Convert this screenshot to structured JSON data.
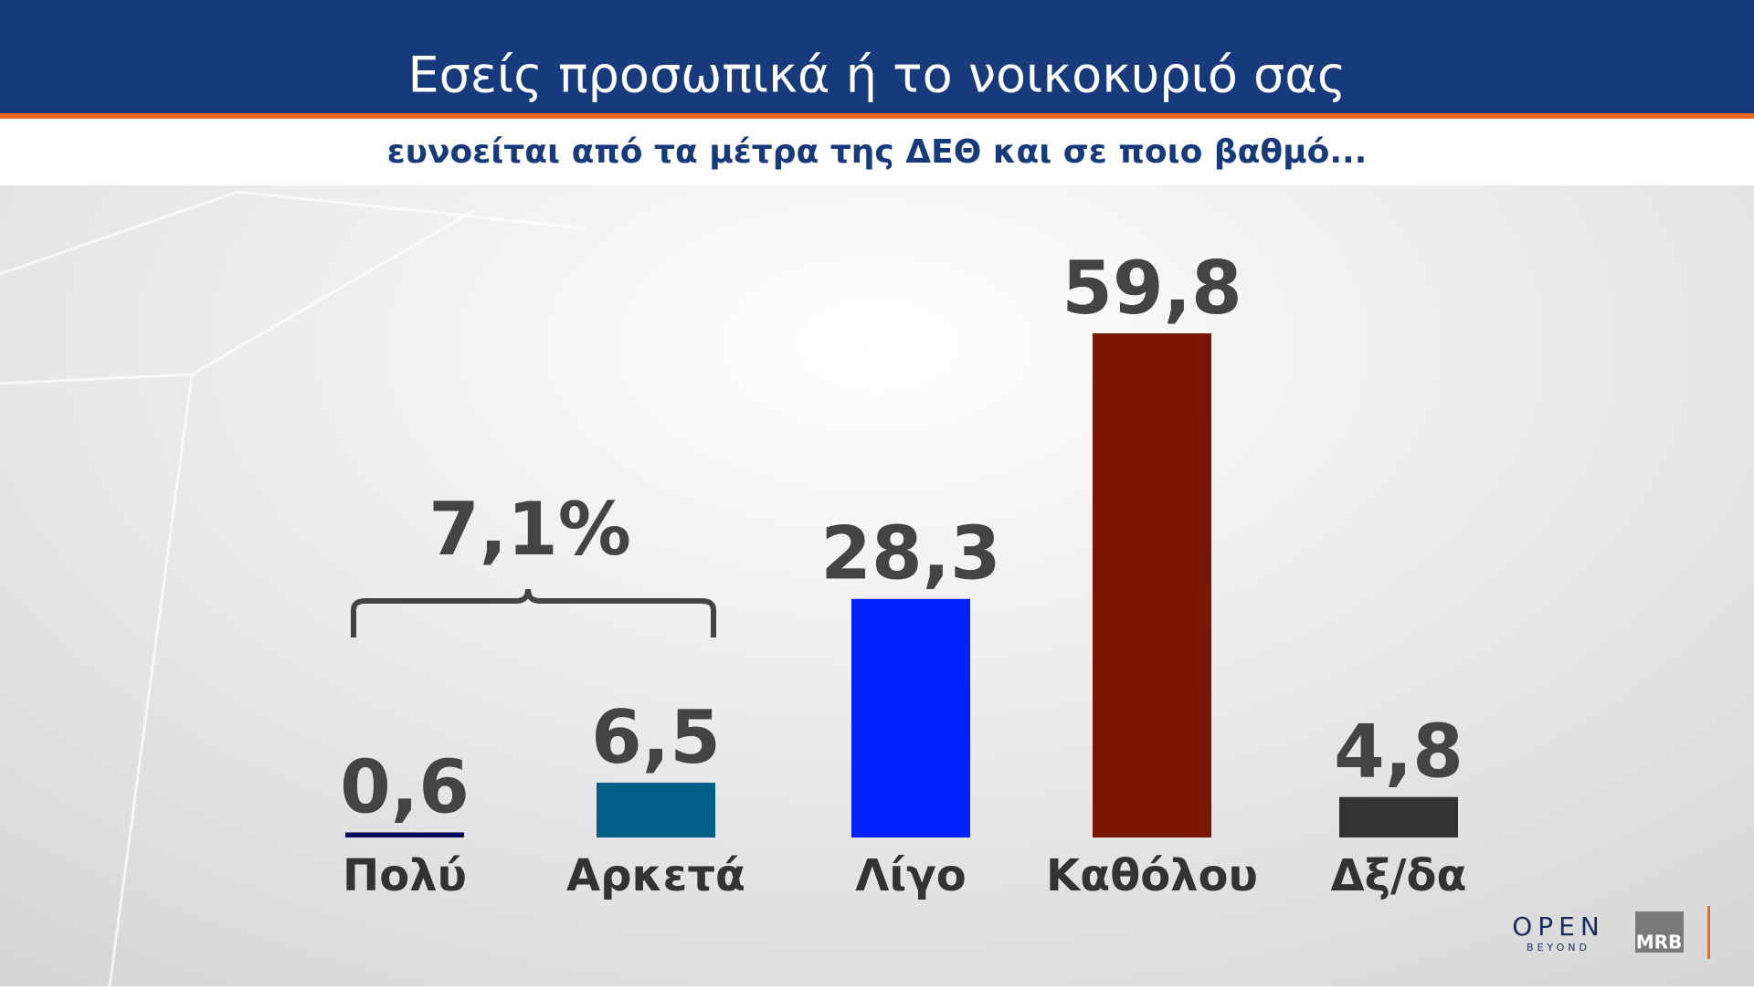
{
  "chart_data": {
    "type": "bar",
    "title": "Εσείς προσωπικά ή το νοικοκυριό σας",
    "subtitle": "ευνοείται από τα μέτρα της ΔΕΘ και σε ποιο βαθμό...",
    "categories": [
      "Πολύ",
      "Αρκετά",
      "Λίγο",
      "Καθόλου",
      "Δξ/δα"
    ],
    "values": [
      0.6,
      6.5,
      28.3,
      59.8,
      4.8
    ],
    "value_labels": [
      "0,6",
      "6,5",
      "28,3",
      "59,8",
      "4,8"
    ],
    "colors": [
      "#0b0b5c",
      "#005e86",
      "#0022ff",
      "#7a1600",
      "#333333"
    ],
    "annotation": "7,1%"
  },
  "branding": {
    "logo": "OPEN",
    "tagline": "BEYOND",
    "pollster": "MRB"
  }
}
